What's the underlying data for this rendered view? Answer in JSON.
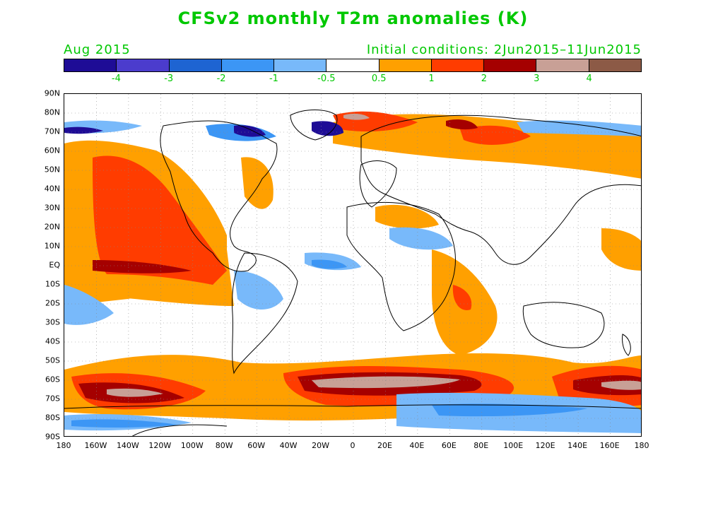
{
  "title": "CFSv2 monthly T2m anomalies (K)",
  "valid_month": "Aug 2015",
  "initial_conditions": "Initial conditions: 2Jun2015–11Jun2015",
  "colorbar": {
    "colors": [
      "#1e0c96",
      "#4b3ccd",
      "#1e64d2",
      "#3c96f5",
      "#78b9fa",
      "#ffffff",
      "#ffa000",
      "#ff3c00",
      "#a50000",
      "#c8a096",
      "#8c5a46"
    ],
    "labels": [
      "-4",
      "-3",
      "-2",
      "-1",
      "-0.5",
      "0.5",
      "1",
      "2",
      "3",
      "4"
    ]
  },
  "lat_labels": [
    "90N",
    "80N",
    "70N",
    "60N",
    "50N",
    "40N",
    "30N",
    "20N",
    "10N",
    "EQ",
    "10S",
    "20S",
    "30S",
    "40S",
    "50S",
    "60S",
    "70S",
    "80S",
    "90S"
  ],
  "lon_labels": [
    "180",
    "160W",
    "140W",
    "120W",
    "100W",
    "80W",
    "60W",
    "40W",
    "20W",
    "0",
    "20E",
    "40E",
    "60E",
    "80E",
    "100E",
    "120E",
    "140E",
    "160E",
    "180"
  ],
  "colors": {
    "text_green": "#00c800",
    "warm_1": "#ffa000",
    "warm_2": "#ff3c00",
    "warm_3": "#a50000",
    "warm_4": "#c8a096",
    "cool_1": "#78b9fa",
    "cool_2": "#3c96f5",
    "cool_3": "#1e64d2",
    "cool_4": "#4b3ccd",
    "cool_5": "#1e0c96"
  }
}
